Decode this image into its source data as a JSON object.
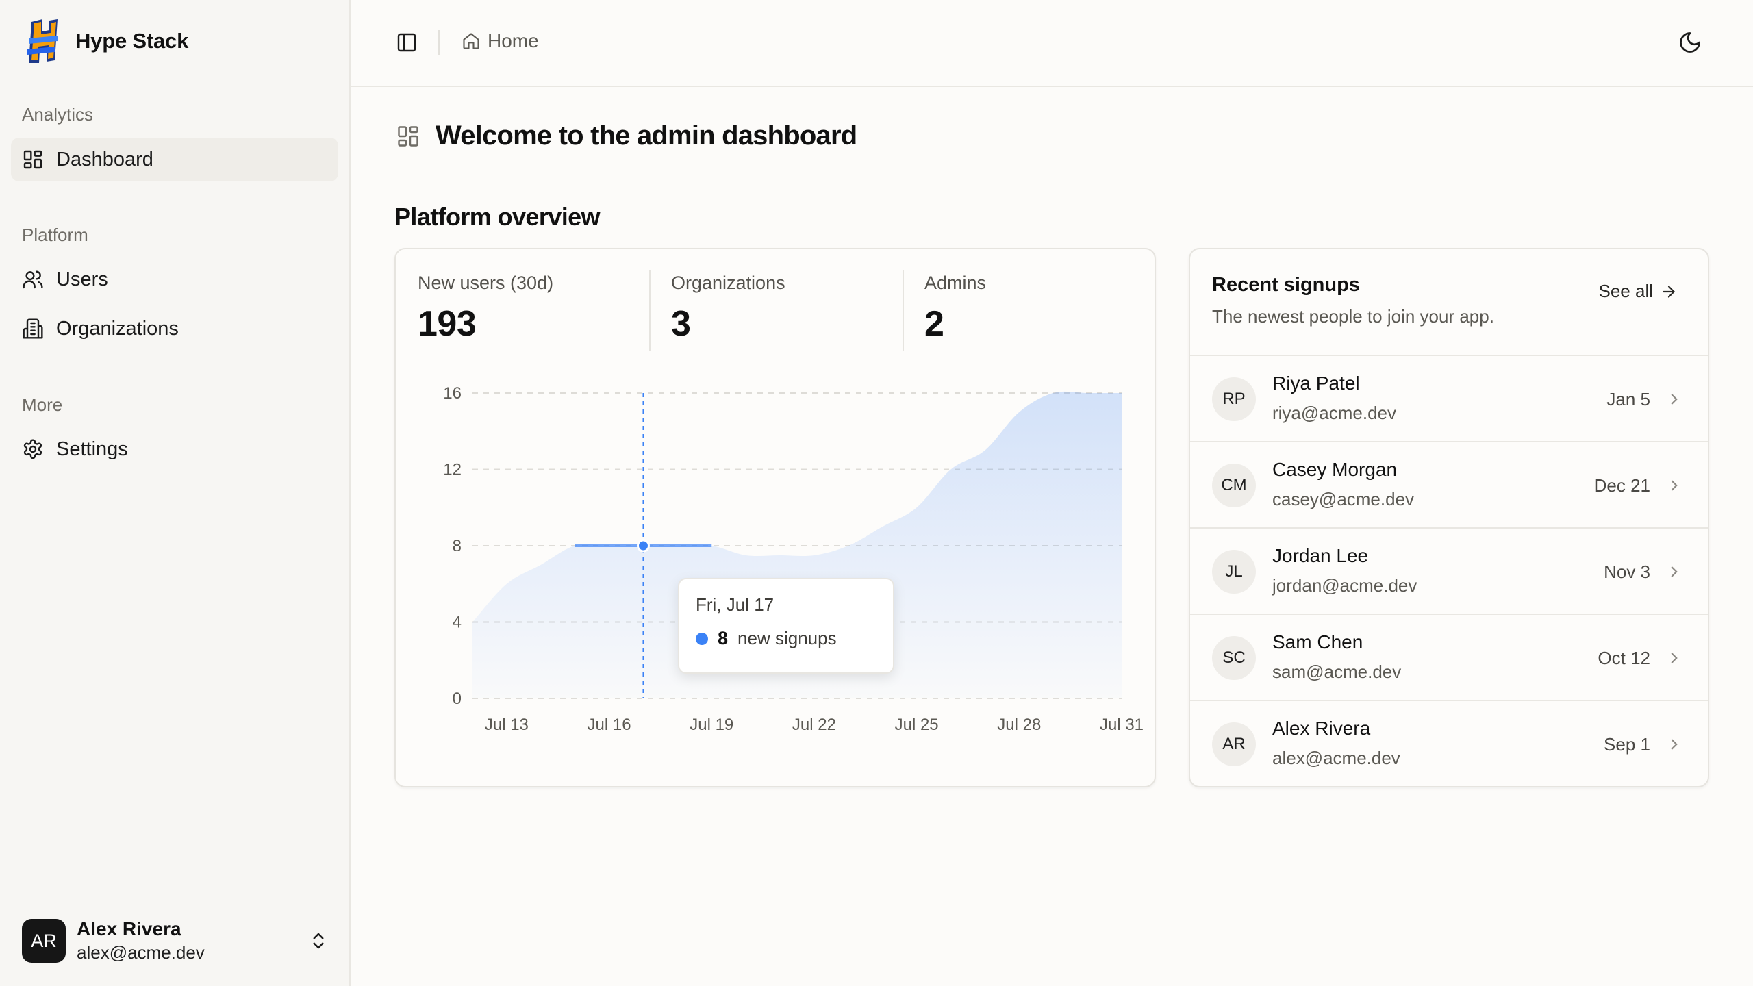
{
  "brand": {
    "name": "Hype Stack"
  },
  "sidebar": {
    "groups": [
      {
        "label": "Analytics",
        "items": [
          {
            "label": "Dashboard",
            "icon": "layout-grid-icon",
            "active": true
          }
        ]
      },
      {
        "label": "Platform",
        "items": [
          {
            "label": "Users",
            "icon": "users-icon"
          },
          {
            "label": "Organizations",
            "icon": "building-icon"
          }
        ]
      },
      {
        "label": "More",
        "items": [
          {
            "label": "Settings",
            "icon": "gear-icon"
          }
        ]
      }
    ],
    "user": {
      "initials": "AR",
      "name": "Alex Rivera",
      "email": "alex@acme.dev"
    }
  },
  "topbar": {
    "breadcrumb": "Home"
  },
  "page": {
    "title": "Welcome to the admin dashboard",
    "section_title": "Platform overview"
  },
  "stats": [
    {
      "label": "New users (30d)",
      "value": "193"
    },
    {
      "label": "Organizations",
      "value": "3"
    },
    {
      "label": "Admins",
      "value": "2"
    }
  ],
  "chart_data": {
    "type": "area",
    "x_ticks": [
      "Jul 13",
      "Jul 16",
      "Jul 19",
      "Jul 22",
      "Jul 25",
      "Jul 28",
      "Jul 31"
    ],
    "y_ticks": [
      0,
      4,
      8,
      12,
      16
    ],
    "ylim": [
      0,
      16
    ],
    "x": [
      "Jul 12",
      "Jul 13",
      "Jul 14",
      "Jul 15",
      "Jul 16",
      "Jul 17",
      "Jul 18",
      "Jul 19",
      "Jul 20",
      "Jul 21",
      "Jul 22",
      "Jul 23",
      "Jul 24",
      "Jul 25",
      "Jul 26",
      "Jul 27",
      "Jul 28",
      "Jul 29",
      "Jul 30",
      "Jul 31"
    ],
    "series": [
      {
        "values": [
          4,
          6,
          7,
          8,
          8,
          8,
          8,
          8,
          7.5,
          7.5,
          7.5,
          8,
          9,
          10,
          12,
          13,
          15,
          16,
          16,
          16
        ],
        "color": "#3b82f6"
      }
    ],
    "grid": true,
    "highlight": {
      "date": "Fri, Jul 17",
      "value": "8",
      "suffix": "new signups"
    }
  },
  "signups": {
    "title": "Recent signups",
    "subtitle": "The newest people to join your app.",
    "see_all": "See all",
    "rows": [
      {
        "initials": "RP",
        "name": "Riya Patel",
        "email": "riya@acme.dev",
        "date": "Jan 5"
      },
      {
        "initials": "CM",
        "name": "Casey Morgan",
        "email": "casey@acme.dev",
        "date": "Dec 21"
      },
      {
        "initials": "JL",
        "name": "Jordan Lee",
        "email": "jordan@acme.dev",
        "date": "Nov 3"
      },
      {
        "initials": "SC",
        "name": "Sam Chen",
        "email": "sam@acme.dev",
        "date": "Oct 12"
      },
      {
        "initials": "AR",
        "name": "Alex Rivera",
        "email": "alex@acme.dev",
        "date": "Sep 1"
      }
    ]
  },
  "colors": {
    "accent": "#3b82f6",
    "sidebar_bg": "#f7f6f3",
    "page_bg": "#fcfbf9"
  }
}
